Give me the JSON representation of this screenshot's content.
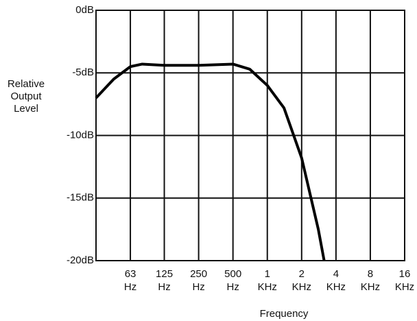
{
  "chart_data": {
    "type": "line",
    "xlabel": "Frequency",
    "ylabel": "Relative Output Level",
    "x": [
      31.5,
      45,
      63,
      80,
      125,
      250,
      500,
      700,
      1000,
      1400,
      2000,
      2800,
      3150
    ],
    "series": [
      {
        "color": "#000000",
        "values": [
          -7.0,
          -5.5,
          -4.5,
          -4.3,
          -4.4,
          -4.4,
          -4.3,
          -4.7,
          -6.0,
          -7.8,
          -11.8,
          -17.5,
          -20
        ]
      }
    ],
    "xscale": "log",
    "xlim": [
      31.5,
      16000
    ],
    "xticks": [
      {
        "value": 63,
        "label": "63 Hz"
      },
      {
        "value": 125,
        "label": "125 Hz"
      },
      {
        "value": 250,
        "label": "250 Hz"
      },
      {
        "value": 500,
        "label": "500 Hz"
      },
      {
        "value": 1000,
        "label": "1 KHz"
      },
      {
        "value": 2000,
        "label": "2 KHz"
      },
      {
        "value": 4000,
        "label": "4 KHz"
      },
      {
        "value": 8000,
        "label": "8 KHz"
      },
      {
        "value": 16000,
        "label": "16 KHz"
      }
    ],
    "ylim": [
      -20,
      0
    ],
    "yticks": [
      {
        "value": 0,
        "label": "0dB"
      },
      {
        "value": -5,
        "label": "-5dB"
      },
      {
        "value": -10,
        "label": "-10dB"
      },
      {
        "value": -15,
        "label": "-15dB"
      },
      {
        "value": -20,
        "label": "-20dB"
      }
    ],
    "grid": true
  }
}
